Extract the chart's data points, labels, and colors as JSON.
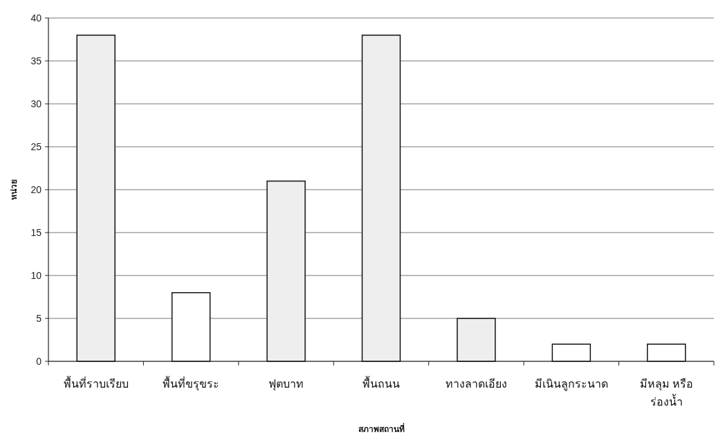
{
  "chart_data": {
    "type": "bar",
    "xlabel": "สภาพสถานที่",
    "ylabel": "หน่วย",
    "categories": [
      "พื้นที่ราบเรียบ",
      "พื้นที่ขรุขระ",
      "ฟุตบาท",
      "พื้นถนน",
      "ทางลาดเอียง",
      "มีเนินลูกระนาด",
      "มีหลุม หรือ ร่องน้ำ"
    ],
    "values": [
      38,
      8,
      21,
      38,
      5,
      2,
      2
    ],
    "colors": [
      "#eeeeee",
      "#ffffff",
      "#eeeeee",
      "#eeeeee",
      "#eeeeee",
      "#ffffff",
      "#ffffff"
    ],
    "ylim": [
      0,
      40
    ],
    "yticks": [
      0,
      5,
      10,
      15,
      20,
      25,
      30,
      35,
      40
    ],
    "grid": "y"
  }
}
